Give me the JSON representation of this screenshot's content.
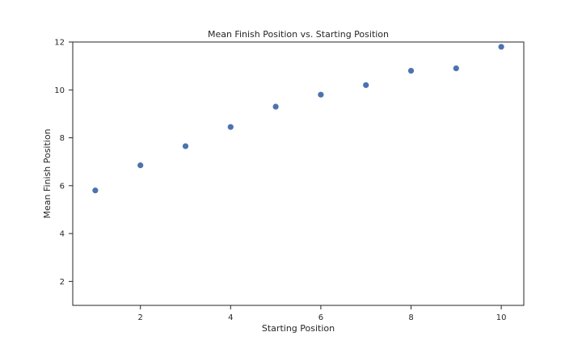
{
  "chart_data": {
    "type": "scatter",
    "title": "Mean Finish Position vs. Starting Position",
    "xlabel": "Starting Position",
    "ylabel": "Mean Finish Position",
    "xlim": [
      0.5,
      10.5
    ],
    "ylim": [
      1.0,
      12.0
    ],
    "x_ticks": [
      2,
      4,
      6,
      8,
      10
    ],
    "y_ticks": [
      2,
      4,
      6,
      8,
      10,
      12
    ],
    "grid": false,
    "marker_color": "#4c72b0",
    "axis_color": "#262626",
    "series": [
      {
        "x": [
          1,
          2,
          3,
          4,
          5,
          6,
          7,
          8,
          9,
          10
        ],
        "y": [
          5.8,
          6.85,
          7.65,
          8.45,
          9.3,
          9.8,
          10.2,
          10.8,
          10.9,
          11.8
        ]
      }
    ]
  }
}
